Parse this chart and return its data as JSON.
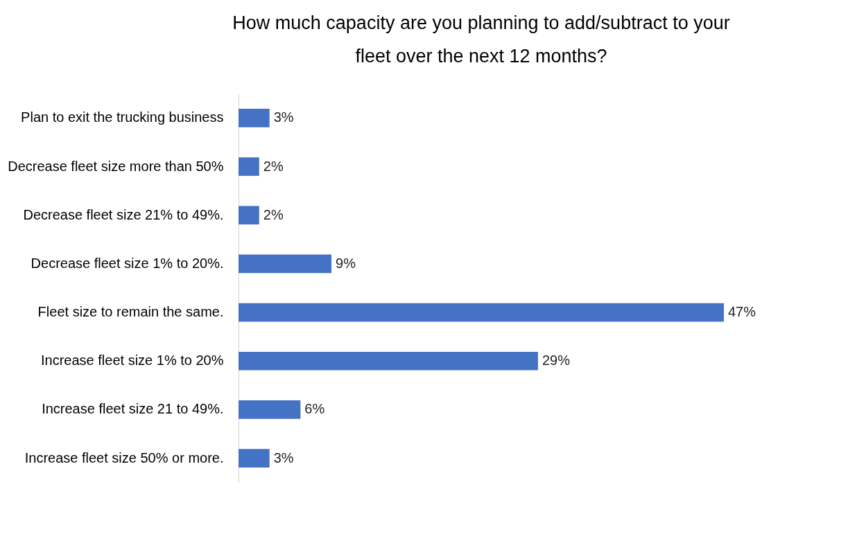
{
  "chart_data": {
    "type": "bar",
    "orientation": "horizontal",
    "title": "How much capacity are you planning to add/subtract to your fleet over the next 12 months?",
    "categories": [
      "Plan to exit the trucking business",
      "Decrease fleet size more than 50%",
      "Decrease fleet size 21% to 49%.",
      "Decrease fleet size 1% to 20%.",
      "Fleet size to remain the same.",
      "Increase fleet size 1% to 20%",
      "Increase fleet size 21 to 49%.",
      "Increase fleet size 50% or more."
    ],
    "values": [
      3,
      2,
      2,
      9,
      47,
      29,
      6,
      3
    ],
    "value_labels": [
      "3%",
      "2%",
      "2%",
      "9%",
      "47%",
      "29%",
      "6%",
      "3%"
    ],
    "color": "#4472c4",
    "grid": false
  }
}
